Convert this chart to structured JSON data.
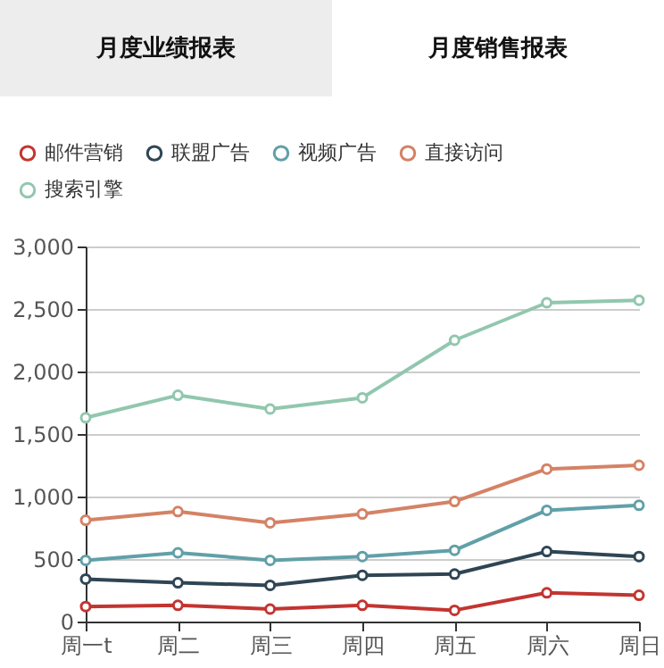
{
  "chart_data": {
    "type": "line",
    "annotations": [
      "月度业绩报表",
      "月度销售报表"
    ],
    "categories": [
      "周一t",
      "周二",
      "周三",
      "周四",
      "周五",
      "周六",
      "周日"
    ],
    "series": [
      {
        "name": "邮件营销",
        "color": "#c23531",
        "values": [
          120,
          130,
          100,
          130,
          90,
          230,
          210
        ]
      },
      {
        "name": "联盟广告",
        "color": "#2f4554",
        "values": [
          340,
          310,
          290,
          370,
          380,
          560,
          520
        ]
      },
      {
        "name": "视频广告",
        "color": "#61a0a8",
        "values": [
          490,
          550,
          490,
          520,
          570,
          890,
          930
        ]
      },
      {
        "name": "直接访问",
        "color": "#d48265",
        "values": [
          810,
          880,
          790,
          860,
          960,
          1220,
          1250
        ]
      },
      {
        "name": "搜索引擎",
        "color": "#91c7ae",
        "values": [
          1630,
          1810,
          1700,
          1790,
          2250,
          2550,
          2570
        ]
      }
    ],
    "ylim": [
      0,
      3000
    ],
    "yticks": [
      0,
      {
        "value": 500,
        "label": "500"
      },
      {
        "value": 1000,
        "label": "1,000"
      },
      {
        "value": 1500,
        "label": "1,500"
      },
      {
        "value": 2000,
        "label": "2,000"
      },
      {
        "value": 2500,
        "label": "2,500"
      },
      {
        "value": 3000,
        "label": "3,000"
      }
    ],
    "grid": "y",
    "legend": "top left",
    "marker": "circle",
    "line_style": "solid"
  }
}
